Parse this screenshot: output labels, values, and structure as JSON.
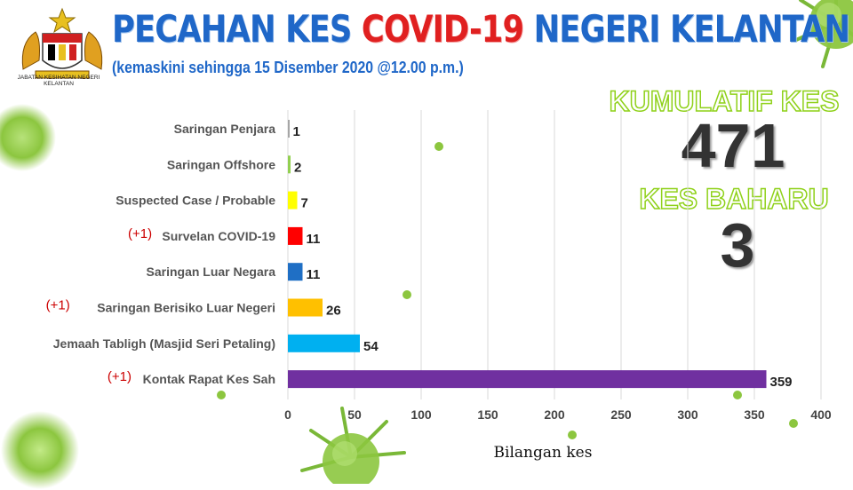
{
  "header": {
    "title_part1": "PECAHAN KES ",
    "title_highlight": "COVID-19",
    "title_part2": " NEGERI KELANTAN",
    "subtitle": "(kemaskini sehingga 15 Disember 2020 @12.00 p.m.)",
    "department": "JABATAN KESIHATAN NEGERI KELANTAN"
  },
  "stats": {
    "cumulative_label": "KUMULATIF KES",
    "cumulative_value": "471",
    "new_label": "KES BAHARU",
    "new_value": "3"
  },
  "colors": {
    "title_blue": "#1f67c8",
    "title_red": "#e02020",
    "stat_outline_green": "#8fd11a",
    "increment_red": "#cc0000",
    "virus_green": "#8cc63f"
  },
  "chart_data": {
    "type": "bar",
    "orientation": "horizontal",
    "title": "",
    "xlabel": "Bilangan kes",
    "ylabel": "",
    "xlim": [
      0,
      400
    ],
    "xticks": [
      0,
      50,
      100,
      150,
      200,
      250,
      300,
      350,
      400
    ],
    "grid": true,
    "legend": "none",
    "categories": [
      "Saringan Penjara",
      "Saringan Offshore",
      "Suspected Case / Probable",
      "Survelan COVID-19",
      "Saringan Luar Negara",
      "Saringan Berisiko Luar Negeri",
      "Jemaah Tabligh (Masjid Seri Petaling)",
      "Kontak Rapat Kes Sah"
    ],
    "values": [
      1,
      2,
      7,
      11,
      11,
      26,
      54,
      359
    ],
    "bar_colors": [
      "#a6a6a6",
      "#92d050",
      "#ffff00",
      "#ff0000",
      "#1f6fc5",
      "#ffc000",
      "#00b0f0",
      "#7030a0"
    ],
    "annotations": [
      "",
      "",
      "",
      "(+1)",
      "",
      "(+1)",
      "",
      "(+1)"
    ]
  }
}
